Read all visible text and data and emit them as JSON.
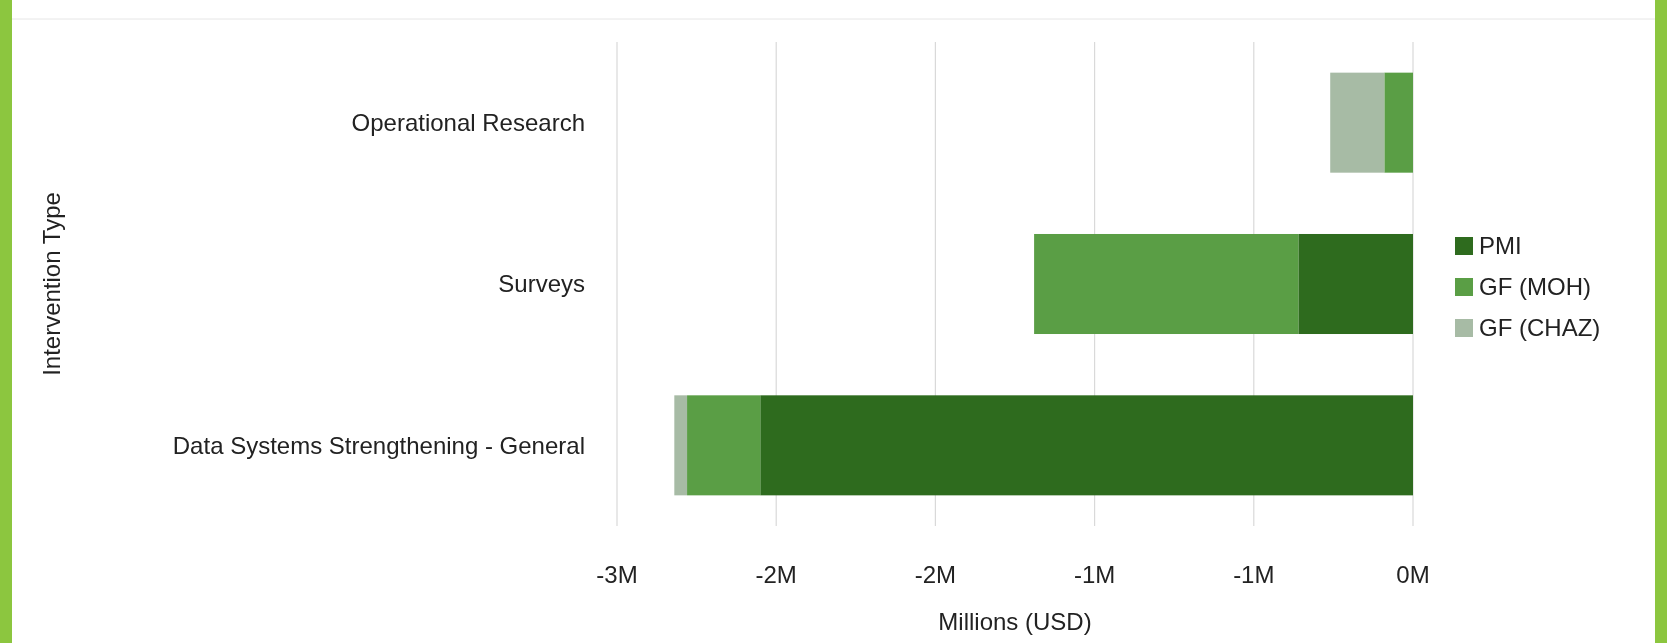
{
  "chart_data": {
    "type": "bar",
    "orientation": "horizontal",
    "stacked": true,
    "xlabel": "Millions (USD)",
    "ylabel": "Intervention Type",
    "categories": [
      "Operational Research",
      "Surveys",
      "Data Systems Strengthening - General"
    ],
    "series": [
      {
        "name": "PMI",
        "color": "#2e6b1e",
        "values": [
          0,
          -0.36,
          -2.05
        ]
      },
      {
        "name": "GF (MOH)",
        "color": "#5a9e45",
        "values": [
          -0.09,
          -0.83,
          -0.23
        ]
      },
      {
        "name": "GF (CHAZ)",
        "color": "#a7bba5",
        "values": [
          -0.17,
          0,
          -0.04
        ]
      }
    ],
    "xlim": [
      -2.5,
      0
    ],
    "xticks": [
      {
        "value": -2.5,
        "label": "-3M"
      },
      {
        "value": -2,
        "label": "-2M"
      },
      {
        "value": -1.5,
        "label": "-2M"
      },
      {
        "value": -1,
        "label": "-1M"
      },
      {
        "value": -0.5,
        "label": "-1M"
      },
      {
        "value": 0,
        "label": "0M"
      }
    ],
    "grid": "x",
    "legend": "right"
  }
}
